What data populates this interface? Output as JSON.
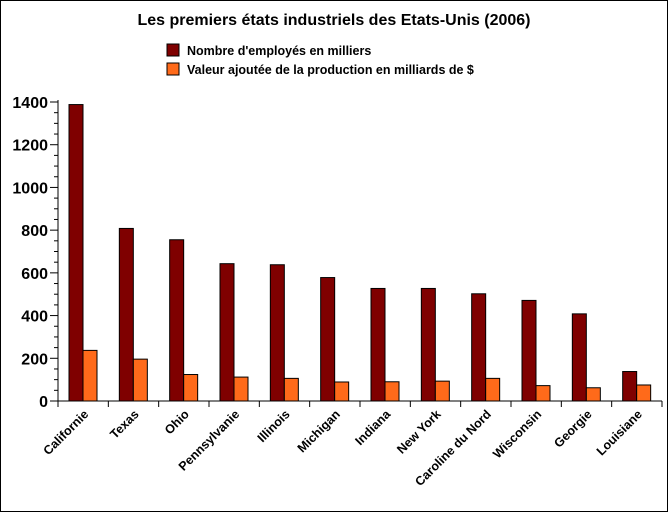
{
  "chart_data": {
    "type": "bar",
    "title": "Les premiers états industriels des Etats-Unis (2006)",
    "xlabel": "",
    "ylabel": "",
    "ylim": [
      0,
      1400
    ],
    "yticks": [
      0,
      200,
      400,
      600,
      800,
      1000,
      1200,
      1400
    ],
    "grid": false,
    "legend_position": "top-center",
    "categories": [
      "Californie",
      "Texas",
      "Ohio",
      "Pennsylvanie",
      "Illinois",
      "Michigan",
      "Indiana",
      "New York",
      "Caroline du Nord",
      "Wisconsin",
      "Georgie",
      "Louisiane"
    ],
    "series": [
      {
        "name": "Nombre d'employés en milliers",
        "color": "#7f0000",
        "values": [
          1388,
          808,
          755,
          643,
          638,
          578,
          527,
          527,
          502,
          471,
          408,
          138
        ]
      },
      {
        "name": "Valeur ajoutée de la production en milliards de $",
        "color": "#ff6a1a",
        "values": [
          237,
          196,
          124,
          112,
          106,
          89,
          90,
          93,
          106,
          72,
          62,
          75
        ]
      }
    ]
  }
}
